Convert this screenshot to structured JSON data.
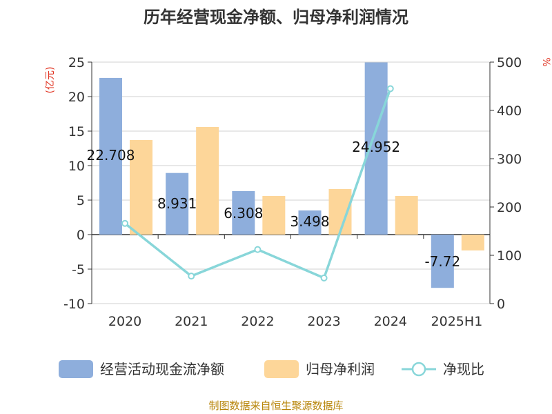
{
  "chart_data": {
    "type": "bar",
    "title": "历年经营现金净额、归母净利润情况",
    "categories": [
      "2020",
      "2021",
      "2022",
      "2023",
      "2024",
      "2025H1"
    ],
    "left_unit": "(亿元)",
    "right_unit": "%",
    "left_ticks": [
      "25",
      "20",
      "15",
      "10",
      "5",
      "0",
      "-5",
      "-10"
    ],
    "right_ticks": [
      "500",
      "400",
      "300",
      "200",
      "100",
      "0"
    ],
    "left_ylim": [
      -10,
      25
    ],
    "right_ylim": [
      0,
      500
    ],
    "series": [
      {
        "name": "经营活动现金流净额",
        "axis": "left",
        "color": "#8eaedc",
        "values": [
          22.708,
          8.931,
          6.308,
          3.498,
          24.952,
          -7.72
        ],
        "labels": [
          "22.708",
          "8.931",
          "6.308",
          "3.498",
          "24.952",
          "-7.72"
        ]
      },
      {
        "name": "归母净利润",
        "axis": "left",
        "color": "#fdd699",
        "values": [
          13.7,
          15.6,
          5.6,
          6.6,
          5.6,
          -2.3
        ]
      },
      {
        "name": "净现比",
        "axis": "right",
        "type": "line",
        "color": "#88d6d9",
        "values": [
          166,
          57,
          112,
          53,
          445,
          null
        ]
      }
    ],
    "legend_position": "bottom",
    "grid": true
  },
  "source": "制图数据来自恒生聚源数据库"
}
